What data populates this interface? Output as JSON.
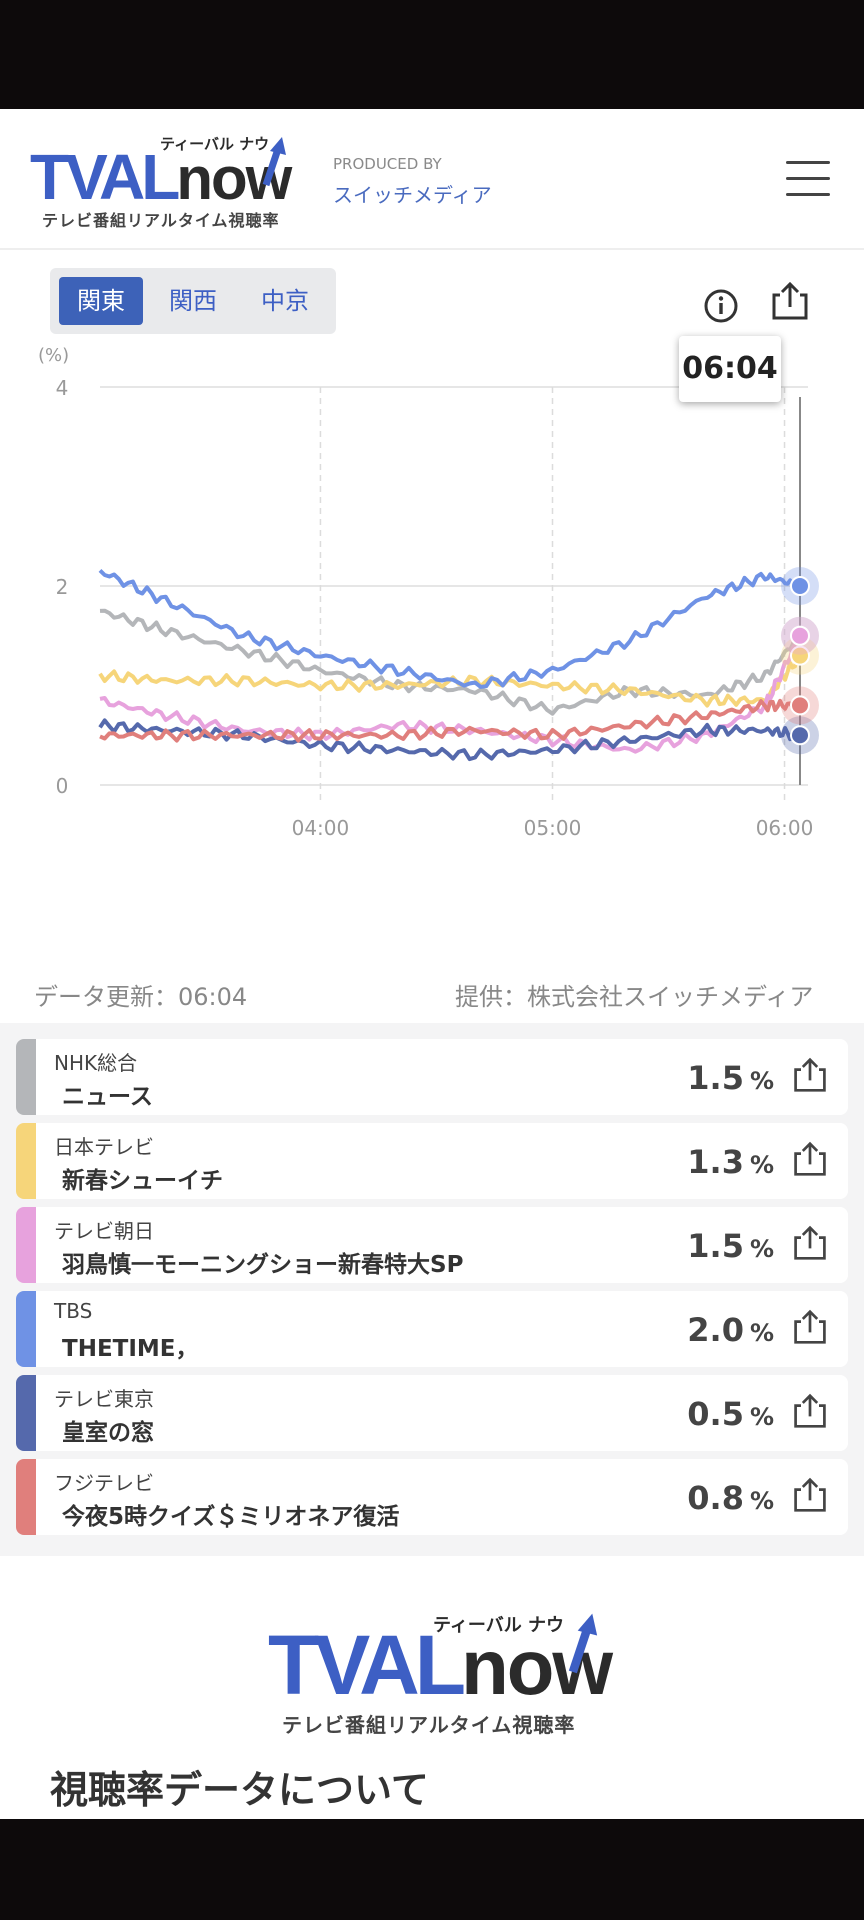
{
  "brand": {
    "logo_main": "TVAL",
    "logo_now": "now",
    "logo_kana": "ティーバル ナウ",
    "logo_sub": "テレビ番組リアルタイム視聴率",
    "produced_by_label": "PRODUCED BY",
    "produced_by_name": "スイッチメディア"
  },
  "regions": [
    {
      "label": "関東",
      "active": true
    },
    {
      "label": "関西",
      "active": false
    },
    {
      "label": "中京",
      "active": false
    }
  ],
  "chart_data": {
    "type": "line",
    "ylabel": "(%)",
    "ylim": [
      0,
      4
    ],
    "yticks": [
      "0",
      "2",
      "4"
    ],
    "xticks": [
      "04:00",
      "05:00",
      "06:00"
    ],
    "x_range": [
      "03:03",
      "06:04"
    ],
    "grid": true,
    "cursor_time": "06:04",
    "x": [
      "03:03",
      "03:20",
      "03:40",
      "04:00",
      "04:20",
      "04:40",
      "05:00",
      "05:20",
      "05:40",
      "05:55",
      "06:04"
    ],
    "series": [
      {
        "name": "NHK総合",
        "color": "#b4b6b9",
        "values": [
          1.75,
          1.55,
          1.35,
          1.15,
          1.0,
          0.95,
          0.75,
          0.95,
          0.9,
          1.1,
          1.5
        ]
      },
      {
        "name": "日本テレビ",
        "color": "#f6d57a",
        "values": [
          1.1,
          1.05,
          1.05,
          1.0,
          1.0,
          1.05,
          1.0,
          0.95,
          0.85,
          0.85,
          1.3
        ]
      },
      {
        "name": "テレビ朝日",
        "color": "#e7a2dd",
        "values": [
          0.85,
          0.7,
          0.55,
          0.5,
          0.6,
          0.55,
          0.45,
          0.35,
          0.5,
          0.8,
          1.5
        ]
      },
      {
        "name": "TBS",
        "color": "#6f92e5",
        "values": [
          2.15,
          1.85,
          1.5,
          1.3,
          1.15,
          1.0,
          1.15,
          1.45,
          1.9,
          2.1,
          2.0
        ]
      },
      {
        "name": "テレビ東京",
        "color": "#5569ac",
        "values": [
          0.6,
          0.55,
          0.5,
          0.4,
          0.35,
          0.3,
          0.35,
          0.45,
          0.55,
          0.55,
          0.5
        ]
      },
      {
        "name": "フジテレビ",
        "color": "#e07f7c",
        "values": [
          0.5,
          0.5,
          0.5,
          0.5,
          0.5,
          0.55,
          0.5,
          0.6,
          0.7,
          0.8,
          0.8
        ]
      }
    ]
  },
  "updated_label": "データ更新：06:04",
  "provider_label": "提供：株式会社スイッチメディア",
  "programs": [
    {
      "channel": "NHK総合",
      "title": "ニュース",
      "value": "1.5",
      "unit": "%",
      "color": "#b4b6b9"
    },
    {
      "channel": "日本テレビ",
      "title": "新春シューイチ",
      "value": "1.3",
      "unit": "%",
      "color": "#f6d57a"
    },
    {
      "channel": "テレビ朝日",
      "title": "羽鳥慎一モーニングショー新春特大SP",
      "value": "1.5",
      "unit": "%",
      "color": "#e7a2dd"
    },
    {
      "channel": "TBS",
      "title": "THETIME，",
      "value": "2.0",
      "unit": "%",
      "color": "#6f92e5"
    },
    {
      "channel": "テレビ東京",
      "title": "皇室の窓",
      "value": "0.5",
      "unit": "%",
      "color": "#5569ac"
    },
    {
      "channel": "フジテレビ",
      "title": "今夜5時クイズ＄ミリオネア復活",
      "value": "0.8",
      "unit": "%",
      "color": "#e07f7c"
    }
  ],
  "section_title": "視聴率データについて"
}
